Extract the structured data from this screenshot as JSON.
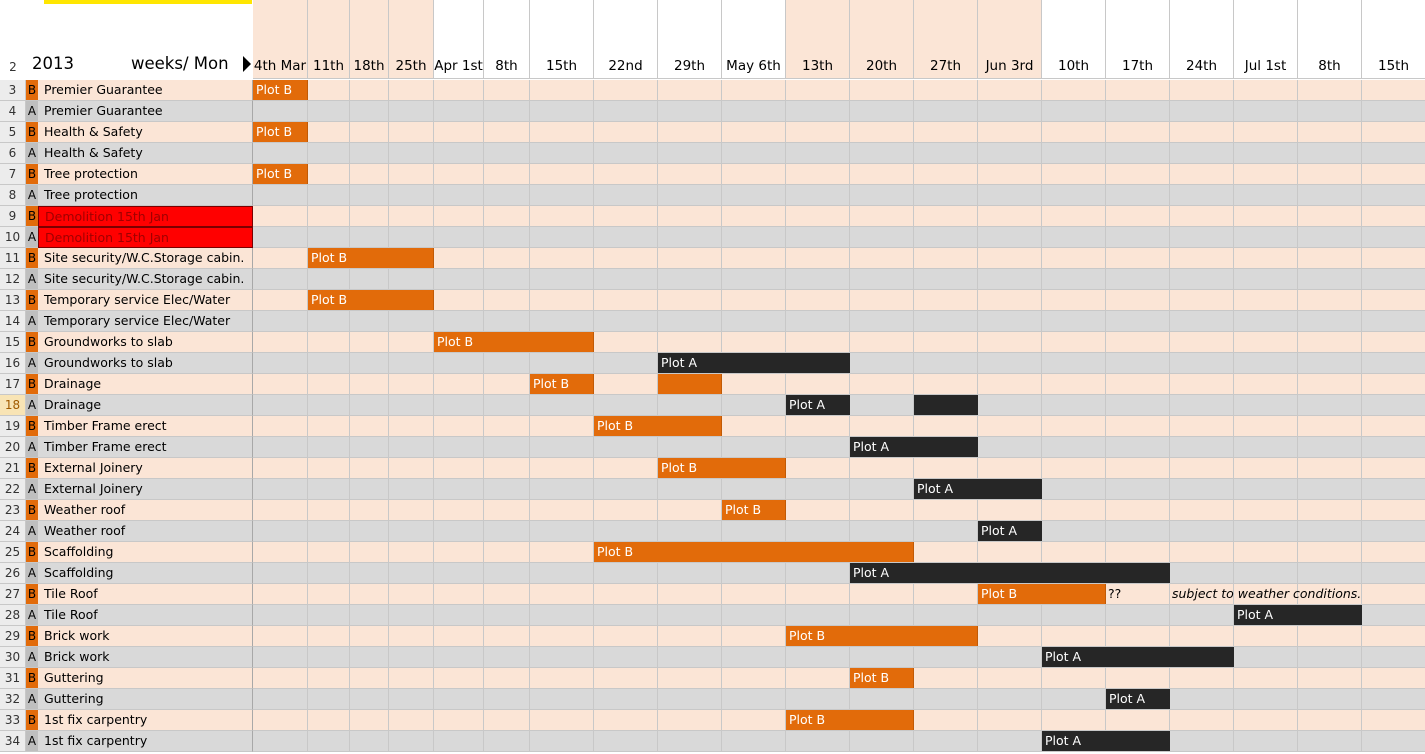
{
  "sheet": {
    "year_label": "2013",
    "weeks_label": "weeks/ Mon",
    "header_row_number": "2",
    "note_question": "??",
    "note_weather": "subject to weather conditions.",
    "columns": [
      "4th Mar",
      "11th",
      "18th",
      "25th",
      "Apr 1st",
      "8th",
      "15th",
      "22nd",
      "29th",
      "May 6th",
      "13th",
      "20th",
      "27th",
      "Jun 3rd",
      "10th",
      "17th",
      "24th",
      "Jul 1st",
      "8th",
      "15th"
    ],
    "rows": [
      {
        "num": "3",
        "plot": "B",
        "task": "Premier Guarantee",
        "bars": [
          {
            "label": "Plot B",
            "start": 0,
            "len": 1,
            "color": "orange"
          }
        ]
      },
      {
        "num": "4",
        "plot": "A",
        "task": "Premier Guarantee",
        "bars": []
      },
      {
        "num": "5",
        "plot": "B",
        "task": "Health & Safety",
        "bars": [
          {
            "label": "Plot B",
            "start": 0,
            "len": 1,
            "color": "orange"
          }
        ]
      },
      {
        "num": "6",
        "plot": "A",
        "task": "Health & Safety",
        "bars": []
      },
      {
        "num": "7",
        "plot": "B",
        "task": "Tree protection",
        "bars": [
          {
            "label": "Plot B",
            "start": 0,
            "len": 1,
            "color": "orange"
          }
        ]
      },
      {
        "num": "8",
        "plot": "A",
        "task": "Tree protection",
        "bars": []
      },
      {
        "num": "9",
        "plot": "B",
        "task": "Demolition 15th Jan",
        "red": true,
        "bars": []
      },
      {
        "num": "10",
        "plot": "A",
        "task": "Demolition 15th Jan",
        "red": true,
        "bars": []
      },
      {
        "num": "11",
        "plot": "B",
        "task": "Site security/W.C.Storage cabin.",
        "bars": [
          {
            "label": "Plot B",
            "start": 1,
            "len": 3,
            "color": "orange"
          }
        ]
      },
      {
        "num": "12",
        "plot": "A",
        "task": "Site security/W.C.Storage cabin.",
        "bars": []
      },
      {
        "num": "13",
        "plot": "B",
        "task": "Temporary service Elec/Water",
        "bars": [
          {
            "label": "Plot B",
            "start": 1,
            "len": 3,
            "color": "orange"
          }
        ]
      },
      {
        "num": "14",
        "plot": "A",
        "task": "Temporary service Elec/Water",
        "bars": []
      },
      {
        "num": "15",
        "plot": "B",
        "task": "Groundworks to slab",
        "bars": [
          {
            "label": "Plot B",
            "start": 4,
            "len": 3,
            "color": "orange"
          }
        ]
      },
      {
        "num": "16",
        "plot": "A",
        "task": "Groundworks to slab",
        "bars": [
          {
            "label": "Plot A",
            "start": 8,
            "len": 3,
            "color": "black"
          }
        ]
      },
      {
        "num": "17",
        "plot": "B",
        "task": "Drainage",
        "bars": [
          {
            "label": "Plot B",
            "start": 6,
            "len": 1,
            "color": "orange"
          },
          {
            "label": "",
            "start": 8,
            "len": 1,
            "color": "orange"
          }
        ]
      },
      {
        "num": "18",
        "plot": "A",
        "task": "Drainage",
        "sel": true,
        "bars": [
          {
            "label": "Plot A",
            "start": 10,
            "len": 1,
            "color": "black"
          },
          {
            "label": "",
            "start": 12,
            "len": 1,
            "color": "black"
          }
        ]
      },
      {
        "num": "19",
        "plot": "B",
        "task": "Timber Frame erect",
        "bars": [
          {
            "label": "Plot B",
            "start": 7,
            "len": 2,
            "color": "orange"
          }
        ]
      },
      {
        "num": "20",
        "plot": "A",
        "task": "Timber Frame erect",
        "bars": [
          {
            "label": "Plot A",
            "start": 11,
            "len": 2,
            "color": "black"
          }
        ]
      },
      {
        "num": "21",
        "plot": "B",
        "task": "External Joinery",
        "bars": [
          {
            "label": "Plot B",
            "start": 8,
            "len": 2,
            "color": "orange"
          }
        ]
      },
      {
        "num": "22",
        "plot": "A",
        "task": "External Joinery",
        "bars": [
          {
            "label": "Plot A",
            "start": 12,
            "len": 2,
            "color": "black"
          }
        ]
      },
      {
        "num": "23",
        "plot": "B",
        "task": "Weather roof",
        "bars": [
          {
            "label": "Plot B",
            "start": 9,
            "len": 1,
            "color": "orange"
          }
        ]
      },
      {
        "num": "24",
        "plot": "A",
        "task": "Weather roof",
        "bars": [
          {
            "label": "Plot A",
            "start": 13,
            "len": 1,
            "color": "black"
          }
        ]
      },
      {
        "num": "25",
        "plot": "B",
        "task": "Scaffolding",
        "bars": [
          {
            "label": "Plot B",
            "start": 7,
            "len": 5,
            "color": "orange"
          }
        ]
      },
      {
        "num": "26",
        "plot": "A",
        "task": "Scaffolding",
        "bars": [
          {
            "label": "Plot A",
            "start": 11,
            "len": 5,
            "color": "black"
          }
        ]
      },
      {
        "num": "27",
        "plot": "B",
        "task": "Tile Roof",
        "bars": [
          {
            "label": "Plot B",
            "start": 13,
            "len": 2,
            "color": "orange"
          }
        ],
        "notes": true
      },
      {
        "num": "28",
        "plot": "A",
        "task": "Tile Roof",
        "bars": [
          {
            "label": "Plot A",
            "start": 17,
            "len": 2,
            "color": "black"
          }
        ]
      },
      {
        "num": "29",
        "plot": "B",
        "task": "Brick work",
        "bars": [
          {
            "label": "Plot B",
            "start": 10,
            "len": 3,
            "color": "orange"
          }
        ]
      },
      {
        "num": "30",
        "plot": "A",
        "task": "Brick work",
        "bars": [
          {
            "label": "Plot A",
            "start": 14,
            "len": 3,
            "color": "black"
          }
        ]
      },
      {
        "num": "31",
        "plot": "B",
        "task": "Guttering",
        "bars": [
          {
            "label": "Plot B",
            "start": 11,
            "len": 1,
            "color": "orange"
          }
        ]
      },
      {
        "num": "32",
        "plot": "A",
        "task": "Guttering",
        "bars": [
          {
            "label": "Plot A",
            "start": 15,
            "len": 1,
            "color": "black"
          }
        ]
      },
      {
        "num": "33",
        "plot": "B",
        "task": "1st fix carpentry",
        "bars": [
          {
            "label": "Plot B",
            "start": 10,
            "len": 2,
            "color": "orange"
          }
        ]
      },
      {
        "num": "34",
        "plot": "A",
        "task": "1st fix carpentry",
        "bars": [
          {
            "label": "Plot A",
            "start": 14,
            "len": 2,
            "color": "black"
          }
        ]
      }
    ],
    "colors": {
      "row_b": "#fbe5d6",
      "row_a": "#d9d9d9",
      "plot_b": "#e26b0a",
      "plot_a": "#bfbfbf",
      "header_peach": "#fbe5d6",
      "header_white": "#ffffff",
      "orange": "#e26b0a",
      "black": "#262626",
      "red": "#ff0000"
    }
  }
}
